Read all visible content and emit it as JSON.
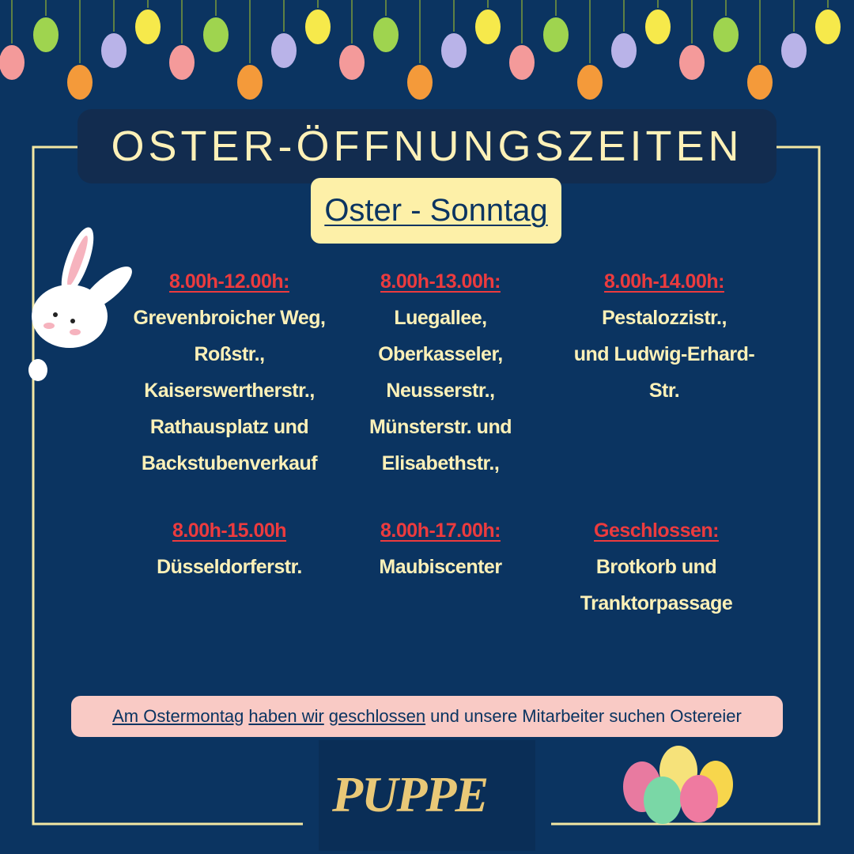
{
  "title": "OSTER-ÖFFNUNGSZEITEN",
  "subtitle": "Oster - Sonntag",
  "blocks": [
    {
      "time": "8.00h-12.00h:",
      "lines": [
        "Grevenbroicher Weg,",
        "Roßstr.,",
        "Kaiserswertherstr.,",
        "Rathausplatz und",
        "Backstubenverkauf"
      ]
    },
    {
      "time": "8.00h-13.00h:",
      "lines": [
        "Luegallee,",
        "Oberkasseler,",
        "Neusserstr.,",
        "Münsterstr. und",
        "Elisabethstr.,"
      ]
    },
    {
      "time": "8.00h-14.00h:",
      "lines": [
        "Pestalozzistr.,",
        "und Ludwig-Erhard-",
        "Str."
      ]
    },
    {
      "time": "8.00h-15.00h",
      "lines": [
        "Düsseldorferstr."
      ]
    },
    {
      "time": "8.00h-17.00h:",
      "lines": [
        "Maubiscenter"
      ]
    },
    {
      "time": "Geschlossen:",
      "lines": [
        "Brotkorb und",
        "Tranktorpassage"
      ]
    }
  ],
  "note": [
    {
      "text": "Am Ostermontag",
      "underline": true
    },
    {
      "text": "haben wir",
      "underline": true
    },
    {
      "text": "geschlossen",
      "underline": true
    },
    {
      "text": "und unsere Mitarbeiter suchen Ostereier",
      "underline": false
    }
  ],
  "logo": "PUPPE"
}
